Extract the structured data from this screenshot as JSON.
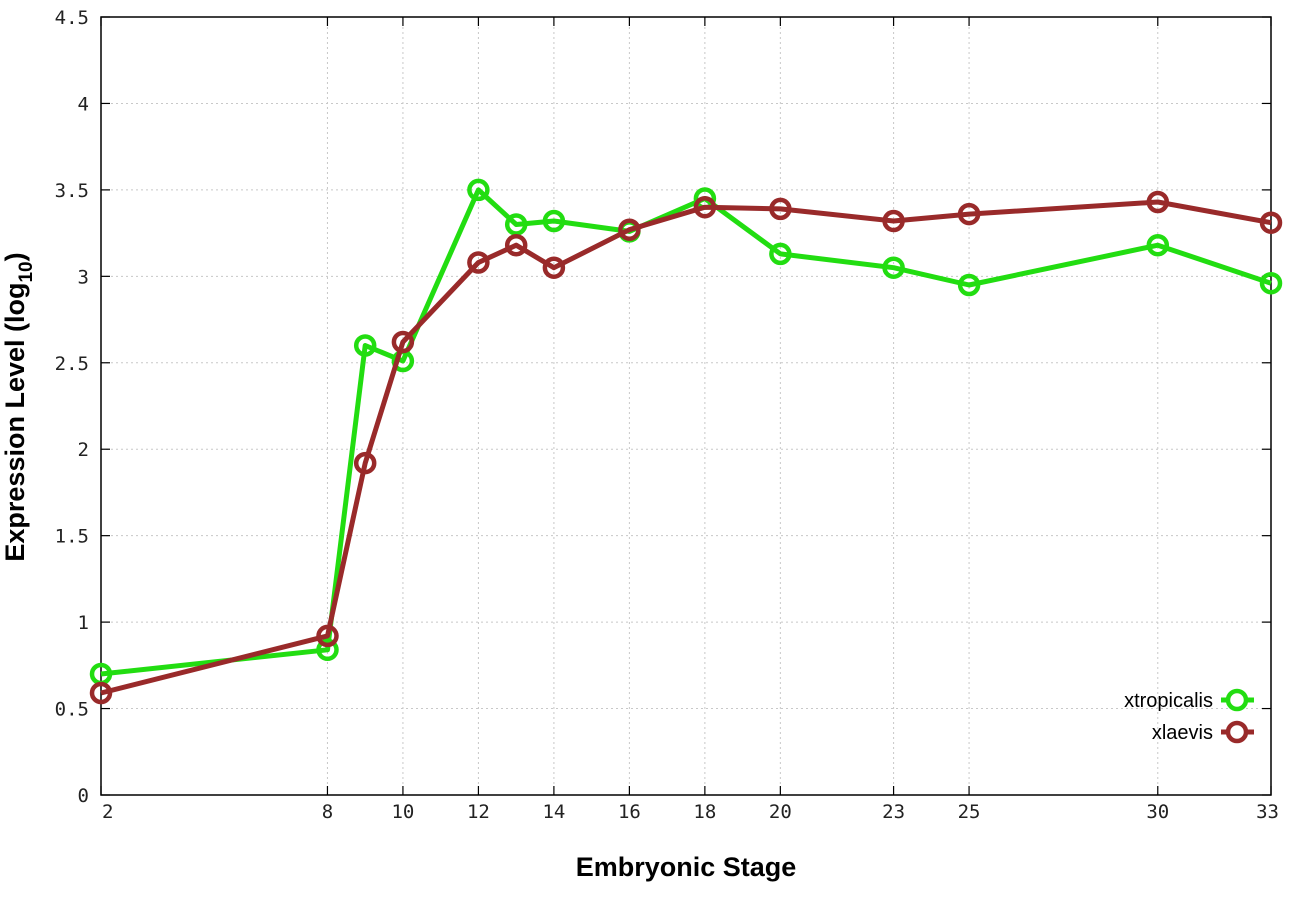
{
  "chart_data": {
    "type": "line",
    "xlabel": "Embryonic Stage",
    "ylabel_main": "Expression Level (log",
    "ylabel_sub": "10",
    "ylabel_end": ")",
    "xlim": [
      2,
      33
    ],
    "ylim": [
      0,
      4.5
    ],
    "x_ticks": [
      2,
      8,
      10,
      12,
      14,
      16,
      18,
      20,
      23,
      25,
      30,
      33
    ],
    "x_tick_labels": [
      "2",
      "8",
      "10",
      "12",
      "14",
      "16",
      "18",
      "20",
      "23",
      "25",
      "30",
      "33"
    ],
    "y_ticks": [
      0,
      0.5,
      1,
      1.5,
      2,
      2.5,
      3,
      3.5,
      4,
      4.5
    ],
    "y_tick_labels": [
      "0",
      "0.5",
      "1",
      "1.5",
      "2",
      "2.5",
      "3",
      "3.5",
      "4",
      "4.5"
    ],
    "grid": true,
    "legend_position": "bottom-right",
    "x": [
      2,
      8,
      9,
      10,
      12,
      13,
      14,
      16,
      18,
      20,
      23,
      25,
      30,
      33
    ],
    "series": [
      {
        "name": "xtropicalis",
        "color": "#22dd11",
        "values": [
          0.7,
          0.84,
          2.6,
          2.51,
          3.5,
          3.3,
          3.32,
          3.26,
          3.45,
          3.13,
          3.05,
          2.95,
          3.18,
          2.96
        ]
      },
      {
        "name": "xlaevis",
        "color": "#992a2a",
        "values": [
          0.59,
          0.92,
          1.92,
          2.62,
          3.08,
          3.18,
          3.05,
          3.27,
          3.4,
          3.39,
          3.32,
          3.36,
          3.43,
          3.31
        ]
      }
    ]
  }
}
